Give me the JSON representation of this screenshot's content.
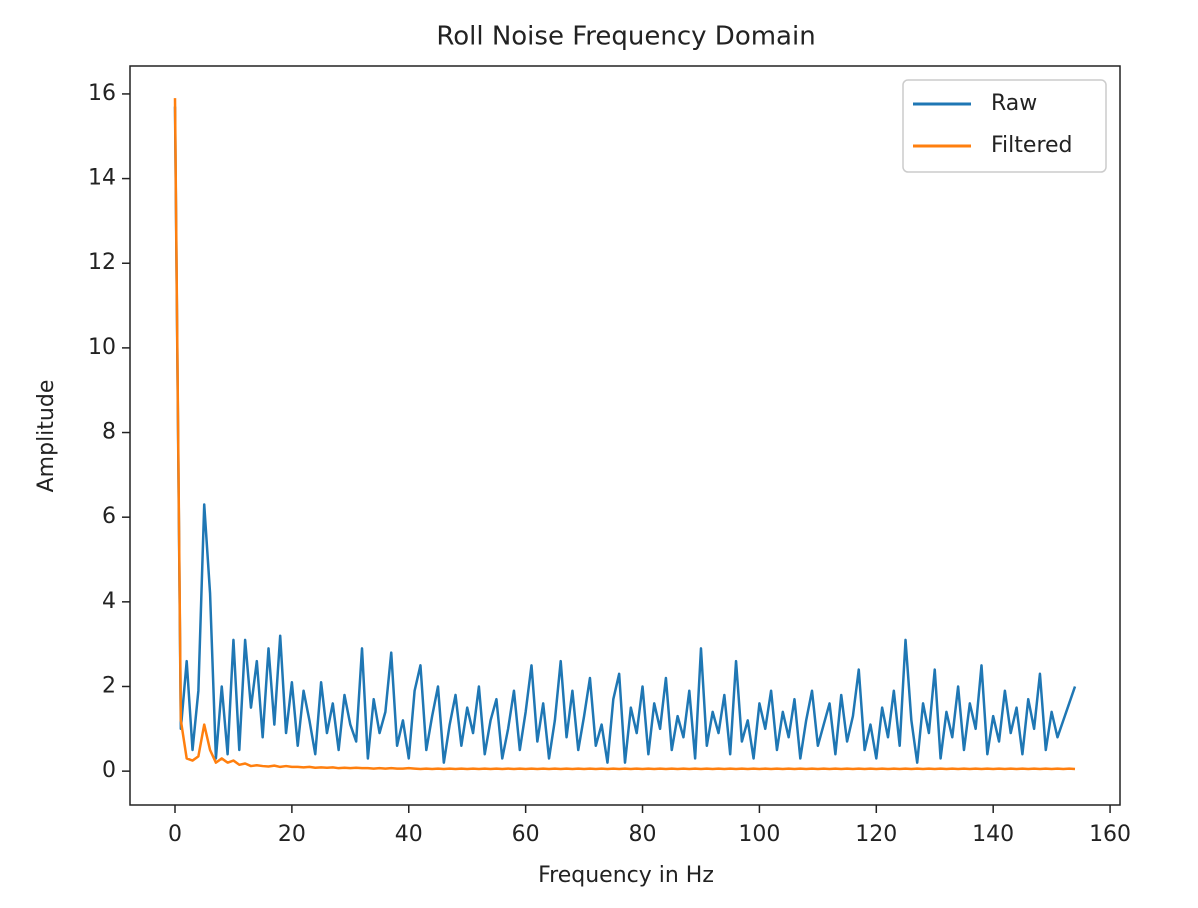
{
  "chart_data": {
    "type": "line",
    "title": "Roll Noise Frequency Domain",
    "xlabel": "Frequency in Hz",
    "ylabel": "Amplitude",
    "x": [
      0,
      1,
      2,
      3,
      4,
      5,
      6,
      7,
      8,
      9,
      10,
      11,
      12,
      13,
      14,
      15,
      16,
      17,
      18,
      19,
      20,
      21,
      22,
      23,
      24,
      25,
      26,
      27,
      28,
      29,
      30,
      31,
      32,
      33,
      34,
      35,
      36,
      37,
      38,
      39,
      40,
      41,
      42,
      43,
      44,
      45,
      46,
      47,
      48,
      49,
      50,
      51,
      52,
      53,
      54,
      55,
      56,
      57,
      58,
      59,
      60,
      61,
      62,
      63,
      64,
      65,
      66,
      67,
      68,
      69,
      70,
      71,
      72,
      73,
      74,
      75,
      76,
      77,
      78,
      79,
      80,
      81,
      82,
      83,
      84,
      85,
      86,
      87,
      88,
      89,
      90,
      91,
      92,
      93,
      94,
      95,
      96,
      97,
      98,
      99,
      100,
      101,
      102,
      103,
      104,
      105,
      106,
      107,
      108,
      109,
      110,
      111,
      112,
      113,
      114,
      115,
      116,
      117,
      118,
      119,
      120,
      121,
      122,
      123,
      124,
      125,
      126,
      127,
      128,
      129,
      130,
      131,
      132,
      133,
      134,
      135,
      136,
      137,
      138,
      139,
      140,
      141,
      142,
      143,
      144,
      145,
      146,
      147,
      148,
      149,
      150,
      151,
      152,
      153,
      154
    ],
    "series": [
      {
        "name": "Raw",
        "color": "#1f77b4",
        "values": [
          15.7,
          1.0,
          2.6,
          0.5,
          1.9,
          6.3,
          4.2,
          0.3,
          2.0,
          0.4,
          3.1,
          0.5,
          3.1,
          1.5,
          2.6,
          0.8,
          2.9,
          1.1,
          3.2,
          0.9,
          2.1,
          0.6,
          1.9,
          1.2,
          0.4,
          2.1,
          0.9,
          1.6,
          0.5,
          1.8,
          1.1,
          0.7,
          2.9,
          0.3,
          1.7,
          0.9,
          1.4,
          2.8,
          0.6,
          1.2,
          0.3,
          1.9,
          2.5,
          0.5,
          1.3,
          2.0,
          0.2,
          1.1,
          1.8,
          0.6,
          1.5,
          0.9,
          2.0,
          0.4,
          1.2,
          1.7,
          0.3,
          1.0,
          1.9,
          0.5,
          1.4,
          2.5,
          0.7,
          1.6,
          0.3,
          1.2,
          2.6,
          0.8,
          1.9,
          0.5,
          1.3,
          2.2,
          0.6,
          1.1,
          0.2,
          1.7,
          2.3,
          0.2,
          1.5,
          0.9,
          2.0,
          0.4,
          1.6,
          1.0,
          2.2,
          0.5,
          1.3,
          0.8,
          1.9,
          0.3,
          2.9,
          0.6,
          1.4,
          0.9,
          1.8,
          0.4,
          2.6,
          0.7,
          1.2,
          0.3,
          1.6,
          1.0,
          1.9,
          0.5,
          1.4,
          0.8,
          1.7,
          0.3,
          1.2,
          1.9,
          0.6,
          1.1,
          1.6,
          0.4,
          1.8,
          0.7,
          1.3,
          2.4,
          0.5,
          1.1,
          0.3,
          1.5,
          0.8,
          1.9,
          0.6,
          3.1,
          1.2,
          0.2,
          1.6,
          0.9,
          2.4,
          0.3,
          1.4,
          0.8,
          2.0,
          0.5,
          1.6,
          1.0,
          2.5,
          0.4,
          1.3,
          0.7,
          1.9,
          0.9,
          1.5,
          0.4,
          1.7,
          1.0,
          2.3,
          0.5,
          1.4,
          0.8,
          1.2,
          1.6,
          2.0
        ]
      },
      {
        "name": "Filtered",
        "color": "#ff7f0e",
        "values": [
          15.9,
          1.2,
          0.3,
          0.25,
          0.35,
          1.1,
          0.5,
          0.2,
          0.3,
          0.2,
          0.25,
          0.15,
          0.18,
          0.12,
          0.14,
          0.12,
          0.11,
          0.13,
          0.1,
          0.12,
          0.1,
          0.1,
          0.09,
          0.1,
          0.08,
          0.09,
          0.08,
          0.09,
          0.07,
          0.08,
          0.07,
          0.08,
          0.07,
          0.07,
          0.06,
          0.07,
          0.06,
          0.07,
          0.06,
          0.06,
          0.07,
          0.06,
          0.05,
          0.06,
          0.05,
          0.06,
          0.05,
          0.06,
          0.05,
          0.06,
          0.05,
          0.06,
          0.05,
          0.06,
          0.05,
          0.06,
          0.05,
          0.06,
          0.05,
          0.06,
          0.05,
          0.06,
          0.05,
          0.06,
          0.05,
          0.06,
          0.05,
          0.06,
          0.05,
          0.06,
          0.05,
          0.06,
          0.05,
          0.06,
          0.05,
          0.06,
          0.05,
          0.06,
          0.05,
          0.06,
          0.05,
          0.06,
          0.05,
          0.06,
          0.05,
          0.06,
          0.05,
          0.06,
          0.05,
          0.06,
          0.05,
          0.06,
          0.05,
          0.06,
          0.05,
          0.06,
          0.05,
          0.06,
          0.05,
          0.06,
          0.05,
          0.06,
          0.05,
          0.06,
          0.05,
          0.06,
          0.05,
          0.06,
          0.05,
          0.06,
          0.05,
          0.06,
          0.05,
          0.06,
          0.05,
          0.06,
          0.05,
          0.06,
          0.05,
          0.06,
          0.05,
          0.06,
          0.05,
          0.06,
          0.05,
          0.06,
          0.05,
          0.06,
          0.05,
          0.06,
          0.05,
          0.06,
          0.05,
          0.06,
          0.05,
          0.06,
          0.05,
          0.06,
          0.05,
          0.06,
          0.05,
          0.06,
          0.05,
          0.06,
          0.05,
          0.06,
          0.05,
          0.06,
          0.05,
          0.06,
          0.05,
          0.06,
          0.05,
          0.06,
          0.05
        ]
      }
    ],
    "xlim": [
      -7.7,
      161.7
    ],
    "ylim": [
      -0.8,
      16.66
    ],
    "xticks": [
      0,
      20,
      40,
      60,
      80,
      100,
      120,
      140,
      160
    ],
    "yticks": [
      0,
      2,
      4,
      6,
      8,
      10,
      12,
      14,
      16
    ],
    "legend": "upper right"
  }
}
